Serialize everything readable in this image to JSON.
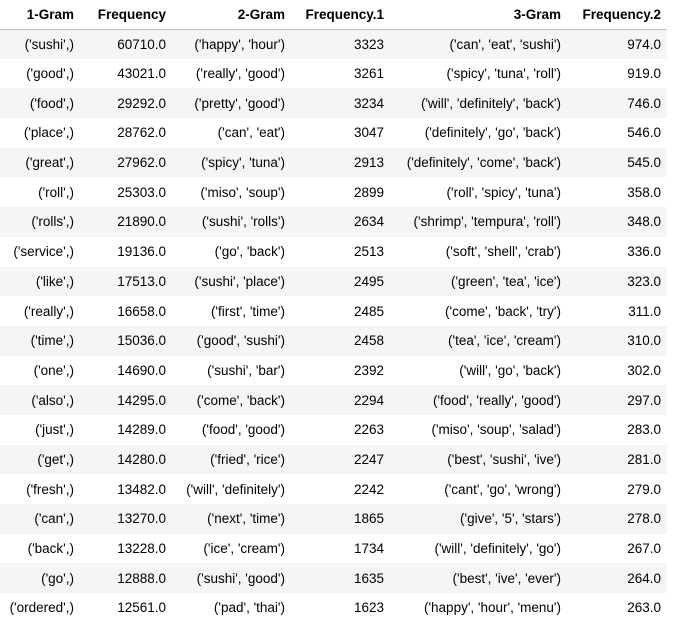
{
  "table": {
    "columns": [
      "1-Gram",
      "Frequency",
      "2-Gram",
      "Frequency.1",
      "3-Gram",
      "Frequency.2"
    ],
    "rows": [
      [
        "('sushi',)",
        "60710.0",
        "('happy', 'hour')",
        "3323",
        "('can', 'eat', 'sushi')",
        "974.0"
      ],
      [
        "('good',)",
        "43021.0",
        "('really', 'good')",
        "3261",
        "('spicy', 'tuna', 'roll')",
        "919.0"
      ],
      [
        "('food',)",
        "29292.0",
        "('pretty', 'good')",
        "3234",
        "('will', 'definitely', 'back')",
        "746.0"
      ],
      [
        "('place',)",
        "28762.0",
        "('can', 'eat')",
        "3047",
        "('definitely', 'go', 'back')",
        "546.0"
      ],
      [
        "('great',)",
        "27962.0",
        "('spicy', 'tuna')",
        "2913",
        "('definitely', 'come', 'back')",
        "545.0"
      ],
      [
        "('roll',)",
        "25303.0",
        "('miso', 'soup')",
        "2899",
        "('roll', 'spicy', 'tuna')",
        "358.0"
      ],
      [
        "('rolls',)",
        "21890.0",
        "('sushi', 'rolls')",
        "2634",
        "('shrimp', 'tempura', 'roll')",
        "348.0"
      ],
      [
        "('service',)",
        "19136.0",
        "('go', 'back')",
        "2513",
        "('soft', 'shell', 'crab')",
        "336.0"
      ],
      [
        "('like',)",
        "17513.0",
        "('sushi', 'place')",
        "2495",
        "('green', 'tea', 'ice')",
        "323.0"
      ],
      [
        "('really',)",
        "16658.0",
        "('first', 'time')",
        "2485",
        "('come', 'back', 'try')",
        "311.0"
      ],
      [
        "('time',)",
        "15036.0",
        "('good', 'sushi')",
        "2458",
        "('tea', 'ice', 'cream')",
        "310.0"
      ],
      [
        "('one',)",
        "14690.0",
        "('sushi', 'bar')",
        "2392",
        "('will', 'go', 'back')",
        "302.0"
      ],
      [
        "('also',)",
        "14295.0",
        "('come', 'back')",
        "2294",
        "('food', 'really', 'good')",
        "297.0"
      ],
      [
        "('just',)",
        "14289.0",
        "('food', 'good')",
        "2263",
        "('miso', 'soup', 'salad')",
        "283.0"
      ],
      [
        "('get',)",
        "14280.0",
        "('fried', 'rice')",
        "2247",
        "('best', 'sushi', 'ive')",
        "281.0"
      ],
      [
        "('fresh',)",
        "13482.0",
        "('will', 'definitely')",
        "2242",
        "('cant', 'go', 'wrong')",
        "279.0"
      ],
      [
        "('can',)",
        "13270.0",
        "('next', 'time')",
        "1865",
        "('give', '5', 'stars')",
        "278.0"
      ],
      [
        "('back',)",
        "13228.0",
        "('ice', 'cream')",
        "1734",
        "('will', 'definitely', 'go')",
        "267.0"
      ],
      [
        "('go',)",
        "12888.0",
        "('sushi', 'good')",
        "1635",
        "('best', 'ive', 'ever')",
        "264.0"
      ],
      [
        "('ordered',)",
        "12561.0",
        "('pad', 'thai')",
        "1623",
        "('happy', 'hour', 'menu')",
        "263.0"
      ]
    ]
  }
}
